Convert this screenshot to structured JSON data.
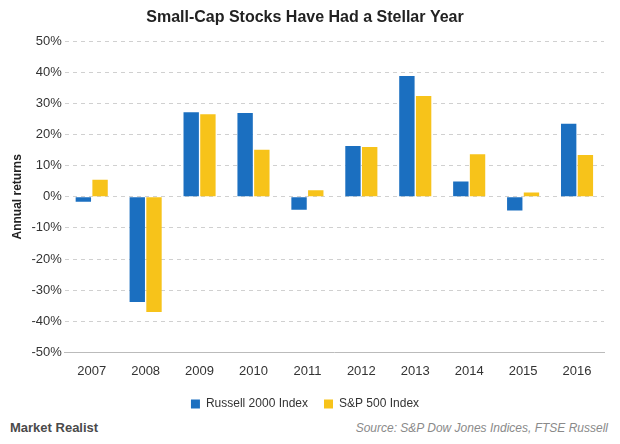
{
  "chart_data": {
    "type": "bar",
    "title": "Small-Cap Stocks Have Had a Stellar Year",
    "y_label": "Annual returns",
    "source": "Source: S&P Dow Jones Indices, FTSE Russell",
    "brand": "Market Realist",
    "categories": [
      "2007",
      "2008",
      "2009",
      "2010",
      "2011",
      "2012",
      "2013",
      "2014",
      "2015",
      "2016"
    ],
    "series": [
      {
        "name": "Russell 2000 Index",
        "color": "#1b6fc0",
        "values": [
          -1.6,
          -33.8,
          27.2,
          26.9,
          -4.2,
          16.3,
          38.8,
          4.9,
          -4.4,
          23.5
        ]
      },
      {
        "name": "S&P 500 Index",
        "color": "#f7c31a",
        "values": [
          5.5,
          -37.0,
          26.5,
          15.1,
          2.1,
          16.0,
          32.4,
          13.7,
          1.4,
          13.4
        ]
      }
    ],
    "ylim": [
      -50,
      50
    ],
    "yticks": [
      {
        "value": -50,
        "label": "-50%"
      },
      {
        "value": -40,
        "label": "-40%"
      },
      {
        "value": -30,
        "label": "-30%"
      },
      {
        "value": -20,
        "label": "-20%"
      },
      {
        "value": -10,
        "label": "-10%"
      },
      {
        "value": 0,
        "label": "0%"
      },
      {
        "value": 10,
        "label": "10%"
      },
      {
        "value": 20,
        "label": "20%"
      },
      {
        "value": 30,
        "label": "30%"
      },
      {
        "value": 40,
        "label": "40%"
      },
      {
        "value": 50,
        "label": "50%"
      }
    ],
    "grid": true,
    "legend": "bottom"
  }
}
